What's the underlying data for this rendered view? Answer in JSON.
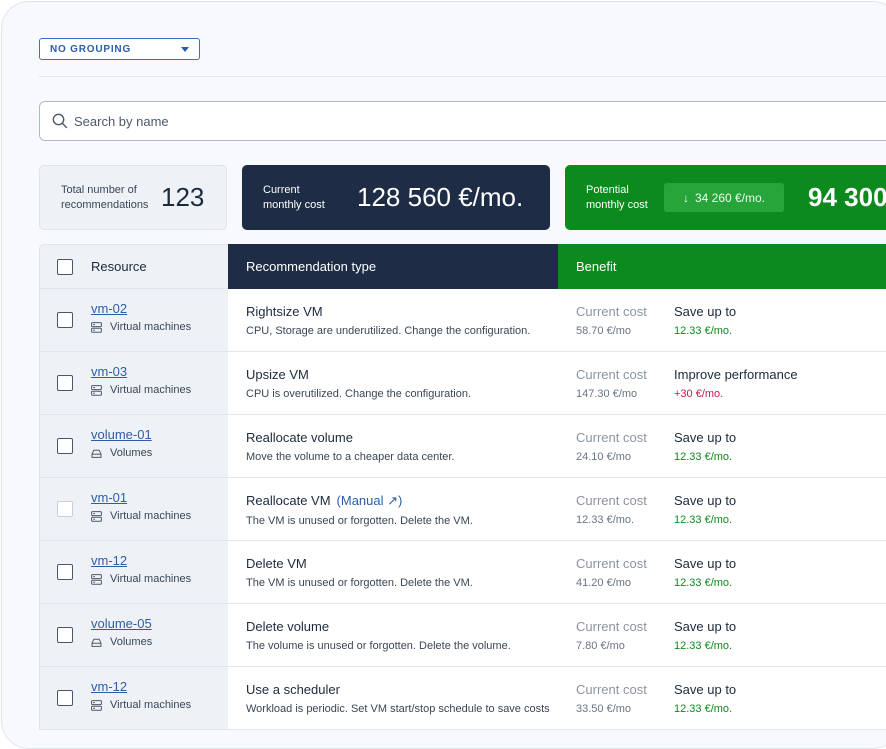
{
  "grouping": {
    "label": "NO GROUPING"
  },
  "search": {
    "placeholder": "Search by name"
  },
  "summary": {
    "total_label": "Total number of recommendations",
    "total_value": "123",
    "current_label": "Current monthly cost",
    "current_value": "128 560 €/mo.",
    "potential_label": "Potential monthly cost",
    "potential_savings": "34 260 €/mo.",
    "potential_value": "94 300"
  },
  "table": {
    "headers": {
      "resource": "Resource",
      "recommendation": "Recommendation type",
      "benefit": "Benefit"
    },
    "rows": [
      {
        "name": "vm-02",
        "kind": "Virtual machines",
        "icon": "server-icon",
        "title": "Rightsize VM",
        "manual": "",
        "desc": "CPU, Storage are underutilized. Change the configuration.",
        "cur_label": "Current cost",
        "cur_value": "58.70 €/mo",
        "save_label": "Save up to",
        "save_value": "12.33 €/mo.",
        "save_color": "green",
        "checkbox_disabled": false
      },
      {
        "name": "vm-03",
        "kind": "Virtual machines",
        "icon": "server-icon",
        "title": "Upsize VM",
        "manual": "",
        "desc": "CPU is overutilized. Change the configuration.",
        "cur_label": "Current cost",
        "cur_value": "147.30 €/mo",
        "save_label": "Improve performance",
        "save_value": "+30 €/mo.",
        "save_color": "red",
        "checkbox_disabled": false
      },
      {
        "name": "volume-01",
        "kind": "Volumes",
        "icon": "volume-icon",
        "title": "Reallocate volume",
        "manual": "",
        "desc": "Move the volume to a cheaper data center.",
        "cur_label": "Current cost",
        "cur_value": "24.10 €/mo",
        "save_label": "Save up to",
        "save_value": "12.33 €/mo.",
        "save_color": "green",
        "checkbox_disabled": false
      },
      {
        "name": "vm-01",
        "kind": "Virtual machines",
        "icon": "server-icon",
        "title": "Reallocate VM",
        "manual": "(Manual ↗)",
        "desc": "The VM is unused or forgotten. Delete the VM.",
        "cur_label": "Current cost",
        "cur_value": "12.33 €/mo.",
        "save_label": "Save up to",
        "save_value": "12.33 €/mo.",
        "save_color": "green",
        "checkbox_disabled": true
      },
      {
        "name": "vm-12",
        "kind": "Virtual machines",
        "icon": "server-icon",
        "title": "Delete VM",
        "manual": "",
        "desc": "The VM is unused or forgotten. Delete the VM.",
        "cur_label": "Current cost",
        "cur_value": "41.20 €/mo",
        "save_label": "Save up to",
        "save_value": "12.33 €/mo.",
        "save_color": "green",
        "checkbox_disabled": false
      },
      {
        "name": "volume-05",
        "kind": "Volumes",
        "icon": "volume-icon",
        "title": "Delete volume",
        "manual": "",
        "desc": "The volume is unused or forgotten. Delete the volume.",
        "cur_label": "Current cost",
        "cur_value": "7.80 €/mo",
        "save_label": "Save up to",
        "save_value": "12.33 €/mo.",
        "save_color": "green",
        "checkbox_disabled": false
      },
      {
        "name": "vm-12",
        "kind": "Virtual machines",
        "icon": "server-icon",
        "title": "Use a scheduler",
        "manual": "",
        "desc": "Workload is periodic. Set VM start/stop schedule to save costs",
        "cur_label": "Current cost",
        "cur_value": "33.50 €/mo",
        "save_label": "Save up to",
        "save_value": "12.33 €/mo.",
        "save_color": "green",
        "checkbox_disabled": false
      }
    ]
  }
}
